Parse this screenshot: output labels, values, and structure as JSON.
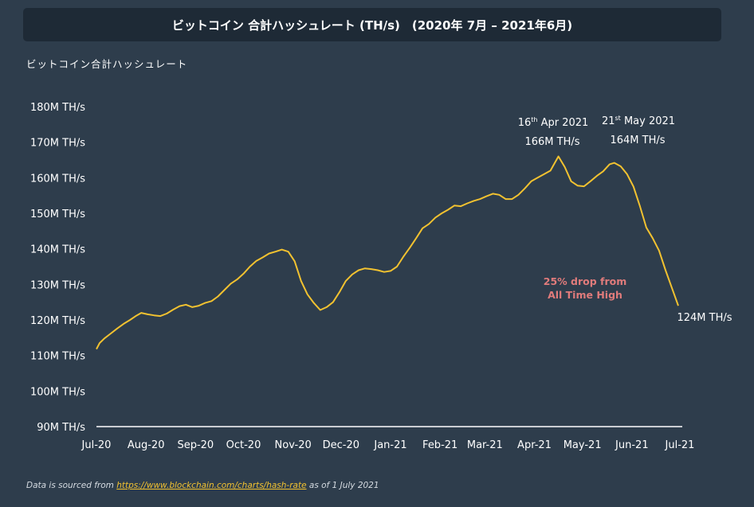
{
  "title": "ビットコイン 合計ハッシュレート (TH/s)　(2020年 7月 – 2021年6月)",
  "ylabel": "ビットコイン合計ハッシュレート",
  "footer": {
    "prefix": "Data is sourced from ",
    "link": "https://www.blockchain.com/charts/hash-rate",
    "suffix": " as of 1 July 2021"
  },
  "colors": {
    "background": "#2e3d4c",
    "title_bar": "#1e2a36",
    "line": "#f2c230",
    "drop_annotation": "#e07b7b"
  },
  "chart_data": {
    "type": "line",
    "title": "ビットコイン 合計ハッシュレート (TH/s)　(2020年 7月 – 2021年6月)",
    "ylabel": "ビットコイン合計ハッシュレート",
    "xlabel": "",
    "ylim": [
      90,
      180
    ],
    "yticks": [
      90,
      100,
      110,
      120,
      130,
      140,
      150,
      160,
      170,
      180
    ],
    "ytick_labels": [
      "90M TH/s",
      "100M TH/s",
      "110M TH/s",
      "120M TH/s",
      "130M TH/s",
      "140M TH/s",
      "150M TH/s",
      "160M TH/s",
      "170M TH/s",
      "180M TH/s"
    ],
    "xlim": [
      "2020-07-01",
      "2021-07-01"
    ],
    "xticks": [
      "2020-07-01",
      "2020-08-01",
      "2020-09-01",
      "2020-10-01",
      "2020-11-01",
      "2020-12-01",
      "2021-01-01",
      "2021-02-01",
      "2021-03-01",
      "2021-04-01",
      "2021-05-01",
      "2021-06-01",
      "2021-07-01"
    ],
    "xtick_labels": [
      "Jul-20",
      "Aug-20",
      "Sep-20",
      "Oct-20",
      "Nov-20",
      "Dec-20",
      "Jan-21",
      "Feb-21",
      "Mar-21",
      "Apr-21",
      "May-21",
      "Jun-21",
      "Jul-21"
    ],
    "grid": false,
    "series": [
      {
        "x": [
          "2020-07-01",
          "2020-07-03",
          "2020-07-06",
          "2020-07-10",
          "2020-07-14",
          "2020-07-18",
          "2020-07-22",
          "2020-07-26",
          "2020-07-29",
          "2020-08-02",
          "2020-08-06",
          "2020-08-10",
          "2020-08-14",
          "2020-08-18",
          "2020-08-22",
          "2020-08-26",
          "2020-08-30",
          "2020-09-03",
          "2020-09-07",
          "2020-09-11",
          "2020-09-15",
          "2020-09-19",
          "2020-09-23",
          "2020-09-27",
          "2020-10-01",
          "2020-10-05",
          "2020-10-09",
          "2020-10-13",
          "2020-10-17",
          "2020-10-21",
          "2020-10-25",
          "2020-10-29",
          "2020-11-02",
          "2020-11-06",
          "2020-11-10",
          "2020-11-14",
          "2020-11-18",
          "2020-11-22",
          "2020-11-26",
          "2020-11-30",
          "2020-12-04",
          "2020-12-08",
          "2020-12-12",
          "2020-12-16",
          "2020-12-20",
          "2020-12-24",
          "2020-12-28",
          "2021-01-01",
          "2021-01-05",
          "2021-01-09",
          "2021-01-13",
          "2021-01-17",
          "2021-01-21",
          "2021-01-25",
          "2021-01-29",
          "2021-02-02",
          "2021-02-06",
          "2021-02-10",
          "2021-02-14",
          "2021-02-18",
          "2021-02-22",
          "2021-02-26",
          "2021-03-02",
          "2021-03-06",
          "2021-03-10",
          "2021-03-14",
          "2021-03-18",
          "2021-03-22",
          "2021-03-26",
          "2021-03-30",
          "2021-04-03",
          "2021-04-07",
          "2021-04-11",
          "2021-04-16",
          "2021-04-20",
          "2021-04-24",
          "2021-04-28",
          "2021-05-02",
          "2021-05-06",
          "2021-05-10",
          "2021-05-14",
          "2021-05-18",
          "2021-05-21",
          "2021-05-25",
          "2021-05-29",
          "2021-06-02",
          "2021-06-06",
          "2021-06-10",
          "2021-06-14",
          "2021-06-18",
          "2021-06-22",
          "2021-06-26",
          "2021-06-30"
        ],
        "values": [
          111.8,
          113.5,
          114.8,
          116.2,
          117.6,
          118.9,
          120.0,
          121.2,
          122.0,
          121.6,
          121.3,
          121.1,
          121.8,
          122.9,
          123.9,
          124.3,
          123.6,
          124.0,
          124.8,
          125.3,
          126.6,
          128.4,
          130.2,
          131.4,
          133.0,
          135.0,
          136.6,
          137.6,
          138.7,
          139.2,
          139.8,
          139.2,
          136.5,
          131.0,
          127.2,
          124.8,
          122.8,
          123.6,
          125.0,
          127.8,
          131.0,
          132.8,
          134.0,
          134.5,
          134.3,
          134.0,
          133.5,
          133.8,
          135.0,
          137.8,
          140.3,
          143.0,
          145.8,
          147.0,
          148.8,
          150.0,
          151.0,
          152.2,
          152.0,
          152.8,
          153.5,
          154.0,
          154.8,
          155.5,
          155.2,
          154.0,
          154.0,
          155.2,
          157.0,
          159.0,
          160.0,
          161.0,
          162.0,
          166.0,
          163.0,
          159.0,
          157.8,
          157.6,
          159.0,
          160.5,
          161.8,
          163.8,
          164.2,
          163.2,
          161.0,
          157.5,
          152.0,
          146.0,
          143.0,
          139.5,
          134.0,
          129.0,
          124.0
        ]
      }
    ],
    "annotations": [
      {
        "date_label": "16",
        "date_sup": "th",
        "date_rest": " Apr 2021",
        "value_label": "166M TH/s",
        "x": "2021-04-16",
        "y": 166
      },
      {
        "date_label": "21",
        "date_sup": "st",
        "date_rest": " May 2021",
        "value_label": "164M TH/s",
        "x": "2021-05-21",
        "y": 164
      },
      {
        "text_line1": "25% drop from",
        "text_line2": "All Time High"
      },
      {
        "end_label": "124M TH/s",
        "x": "2021-06-30",
        "y": 124
      }
    ]
  }
}
